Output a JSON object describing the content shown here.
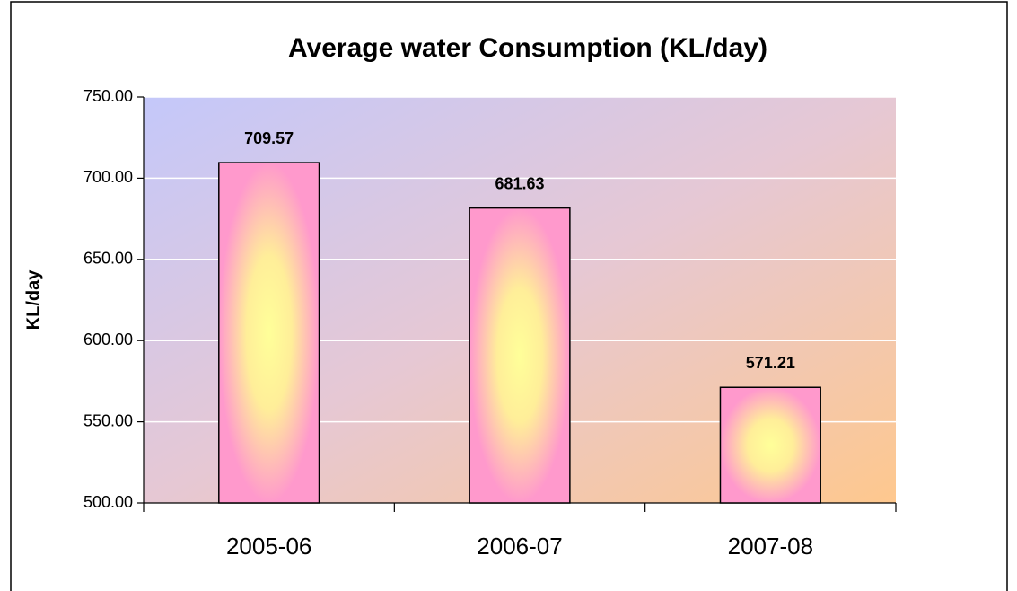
{
  "chart_data": {
    "type": "bar",
    "title": "Average water Consumption (KL/day)",
    "y_label": "KL/day",
    "categories": [
      "2005-06",
      "2006-07",
      "2007-08"
    ],
    "values": [
      709.57,
      681.63,
      571.21
    ],
    "color": "#ff99cc",
    "ylim": [
      500,
      750
    ],
    "yticks": [
      {
        "value": 500,
        "label": "500.00"
      },
      {
        "value": 550,
        "label": "550.00"
      },
      {
        "value": 600,
        "label": "600.00"
      },
      {
        "value": 650,
        "label": "650.00"
      },
      {
        "value": 700,
        "label": "700.00"
      },
      {
        "value": 750,
        "label": "750.00"
      }
    ],
    "grid": true
  }
}
